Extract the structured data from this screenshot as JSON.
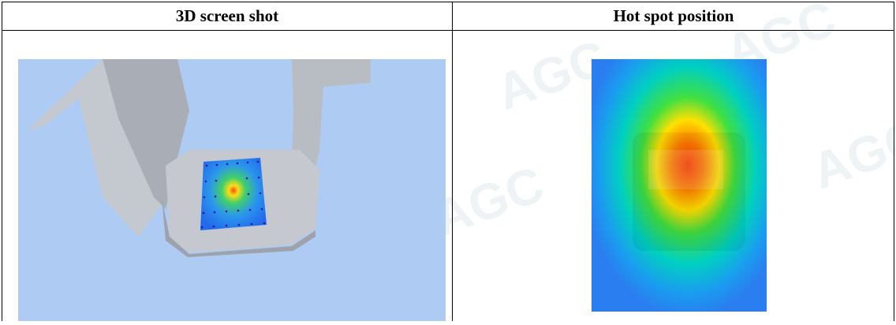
{
  "table": {
    "headers": [
      "3D screen shot",
      "Hot spot position"
    ]
  },
  "watermark": "AGC"
}
